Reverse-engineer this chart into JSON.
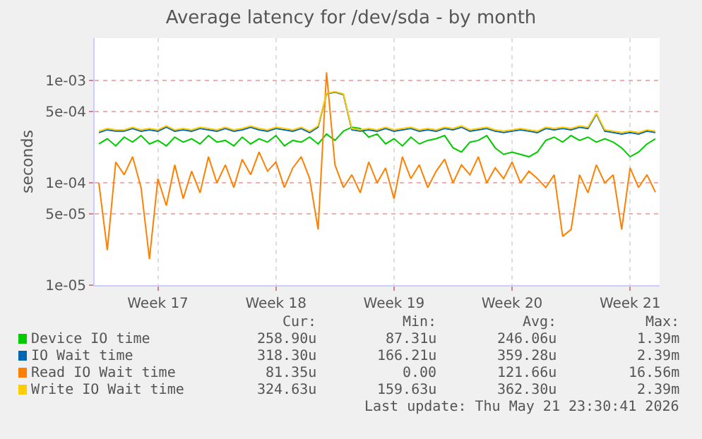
{
  "chart_data": {
    "type": "line",
    "title": "Average latency for /dev/sda - by month",
    "ylabel": "seconds",
    "categories": [
      null,
      null,
      null,
      null,
      null,
      null,
      null,
      "Week 17",
      null,
      null,
      null,
      null,
      null,
      null,
      null,
      null,
      null,
      null,
      null,
      null,
      null,
      "Week 18",
      null,
      null,
      null,
      null,
      null,
      null,
      null,
      null,
      null,
      null,
      null,
      null,
      null,
      "Week 19",
      null,
      null,
      null,
      null,
      null,
      null,
      null,
      null,
      null,
      null,
      null,
      null,
      null,
      "Week 20",
      null,
      null,
      null,
      null,
      null,
      null,
      null,
      null,
      null,
      null,
      null,
      null,
      null,
      "Week 21",
      null,
      null,
      null
    ],
    "ylim": [
      1e-05,
      0.0026
    ],
    "log": "y",
    "yticks": [
      {
        "value": 1e-05,
        "label": "1e-05"
      },
      {
        "value": 5e-05,
        "label": "5e-05"
      },
      {
        "value": 0.0001,
        "label": "1e-04"
      },
      {
        "value": 0.0005,
        "label": "5e-04"
      },
      {
        "value": 0.001,
        "label": "1e-03"
      }
    ],
    "grid": true,
    "legend": "bottom",
    "series": [
      {
        "name": "Device IO time",
        "color": "#00cc00",
        "values": [
          0.00024,
          0.00027,
          0.00023,
          0.00028,
          0.00025,
          0.00029,
          0.00024,
          0.00026,
          0.00023,
          0.00028,
          0.00025,
          0.00027,
          0.00024,
          0.00029,
          0.00025,
          0.00026,
          0.00023,
          0.00028,
          0.00024,
          0.00027,
          0.00025,
          0.00029,
          0.00023,
          0.00026,
          0.00025,
          0.00028,
          0.00024,
          0.0003,
          0.00026,
          0.00032,
          0.00035,
          0.00034,
          0.00028,
          0.0003,
          0.00024,
          0.00027,
          0.00023,
          0.00028,
          0.00024,
          0.00026,
          0.00027,
          0.00029,
          0.00022,
          0.0002,
          0.00025,
          0.00026,
          0.00029,
          0.00022,
          0.00019,
          0.0002,
          0.00019,
          0.00018,
          0.0002,
          0.00026,
          0.00028,
          0.00025,
          0.00029,
          0.00026,
          0.00028,
          0.00025,
          0.00027,
          0.00025,
          0.00022,
          0.00018,
          0.0002,
          0.00024,
          0.00027
        ]
      },
      {
        "name": "IO Wait time",
        "color": "#0066b3",
        "values": [
          0.00031,
          0.00033,
          0.00032,
          0.00032,
          0.00034,
          0.00032,
          0.00033,
          0.00032,
          0.00035,
          0.00032,
          0.00033,
          0.00032,
          0.00034,
          0.00033,
          0.00032,
          0.00034,
          0.00032,
          0.00033,
          0.00035,
          0.00033,
          0.00032,
          0.00034,
          0.00033,
          0.00032,
          0.00034,
          0.00031,
          0.00035,
          0.00074,
          0.00077,
          0.00073,
          0.00033,
          0.00032,
          0.00033,
          0.00032,
          0.00034,
          0.00032,
          0.00033,
          0.00034,
          0.00032,
          0.00033,
          0.00032,
          0.00034,
          0.00033,
          0.00035,
          0.00032,
          0.00033,
          0.00034,
          0.00032,
          0.00031,
          0.00032,
          0.00033,
          0.00032,
          0.00031,
          0.00034,
          0.00033,
          0.00034,
          0.00033,
          0.00035,
          0.00034,
          0.00047,
          0.00032,
          0.00031,
          0.0003,
          0.00031,
          0.0003,
          0.00032,
          0.00031
        ]
      },
      {
        "name": "Read IO Wait time",
        "color": "#ff8000",
        "values": [
          0.0001,
          2.2e-05,
          0.00016,
          0.00012,
          0.00018,
          9e-05,
          1.8e-05,
          0.00011,
          6e-05,
          0.00015,
          7e-05,
          0.00013,
          8e-05,
          0.00018,
          0.0001,
          0.00015,
          9e-05,
          0.00017,
          0.00012,
          0.0002,
          0.00013,
          0.00016,
          9e-05,
          0.00014,
          0.00018,
          0.00011,
          3.5e-05,
          0.0012,
          0.00015,
          9e-05,
          0.00012,
          8e-05,
          0.00016,
          0.0001,
          0.00014,
          7e-05,
          0.00018,
          0.00011,
          0.00015,
          9e-05,
          0.00013,
          0.00017,
          0.0001,
          0.00015,
          0.00012,
          0.00018,
          0.0001,
          0.00014,
          0.00011,
          0.00016,
          0.0001,
          0.00013,
          0.00011,
          9e-05,
          0.00012,
          3e-05,
          3.5e-05,
          0.00012,
          8e-05,
          0.00015,
          0.0001,
          0.00012,
          3.5e-05,
          0.00014,
          9e-05,
          0.00012,
          8.1e-05
        ]
      },
      {
        "name": "Write IO Wait time",
        "color": "#ffcc00",
        "values": [
          0.00032,
          0.00034,
          0.00033,
          0.00033,
          0.00035,
          0.00033,
          0.00034,
          0.00033,
          0.00036,
          0.00033,
          0.00034,
          0.00033,
          0.00035,
          0.00034,
          0.00033,
          0.00035,
          0.00033,
          0.00034,
          0.00036,
          0.00034,
          0.00033,
          0.00035,
          0.00034,
          0.00033,
          0.00035,
          0.00032,
          0.00036,
          0.00075,
          0.00078,
          0.00074,
          0.00034,
          0.00033,
          0.00034,
          0.00033,
          0.00035,
          0.00033,
          0.00034,
          0.00035,
          0.00033,
          0.00034,
          0.00033,
          0.00035,
          0.00034,
          0.00036,
          0.00033,
          0.00034,
          0.00035,
          0.00033,
          0.00032,
          0.00033,
          0.00034,
          0.00033,
          0.00032,
          0.00035,
          0.00034,
          0.00035,
          0.00034,
          0.00036,
          0.00035,
          0.00048,
          0.00033,
          0.00032,
          0.00031,
          0.00032,
          0.00031,
          0.00033,
          0.00032
        ]
      }
    ],
    "annotations": [
      "Cur:",
      "Min:",
      "Avg:",
      "Max:",
      "258.90u",
      "87.31u",
      "246.06u",
      "1.39m",
      "318.30u",
      "166.21u",
      "359.28u",
      "2.39m",
      "81.35u",
      "0.00",
      "121.66u",
      "16.56m",
      "324.63u",
      "159.63u",
      "362.30u",
      "2.39m",
      "Last update: Thu May 21 23:30:41 2026"
    ]
  }
}
